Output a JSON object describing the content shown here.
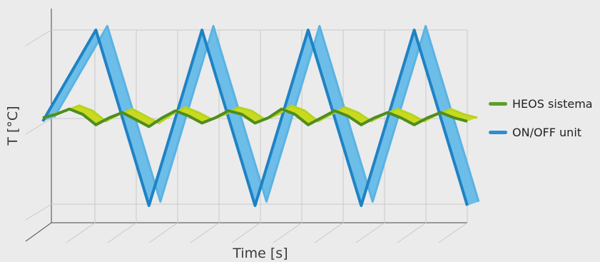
{
  "chart_data": {
    "type": "line",
    "title": "",
    "xlabel": "Time [s]",
    "ylabel": "T [°C]",
    "grid": true,
    "legend_position": "right",
    "x_ticks_labeled": false,
    "y_ticks_labeled": false,
    "ylim": [
      0,
      1
    ],
    "series": [
      {
        "name": "HEOS sistema",
        "color": "#5f9e2a",
        "x": [
          0,
          0.5,
          1,
          1.5,
          2,
          2.5,
          3,
          3.5,
          4,
          4.5,
          5,
          5.5,
          6,
          6.5,
          7,
          7.5,
          8,
          8.5,
          9,
          9.5,
          10,
          10.5,
          11,
          11.5,
          12,
          12.5,
          13,
          13.5,
          14,
          14.5,
          15,
          15.5,
          16
        ],
        "values": [
          0.5,
          0.52,
          0.55,
          0.52,
          0.46,
          0.5,
          0.53,
          0.49,
          0.45,
          0.5,
          0.54,
          0.51,
          0.47,
          0.5,
          0.54,
          0.52,
          0.47,
          0.5,
          0.55,
          0.52,
          0.46,
          0.5,
          0.54,
          0.51,
          0.46,
          0.5,
          0.53,
          0.5,
          0.46,
          0.5,
          0.53,
          0.5,
          0.48
        ]
      },
      {
        "name": "ON/OFF unit",
        "color": "#2a8fcf",
        "x": [
          0,
          2,
          4,
          6,
          8,
          10,
          12,
          14,
          16
        ],
        "values": [
          0.48,
          1.0,
          0.0,
          1.0,
          0.0,
          1.0,
          0.0,
          1.0,
          0.0
        ]
      }
    ]
  },
  "legend": [
    {
      "label": "HEOS sistema",
      "color": "#5f9e2a"
    },
    {
      "label": "ON/OFF unit",
      "color": "#2a8fcf"
    }
  ]
}
